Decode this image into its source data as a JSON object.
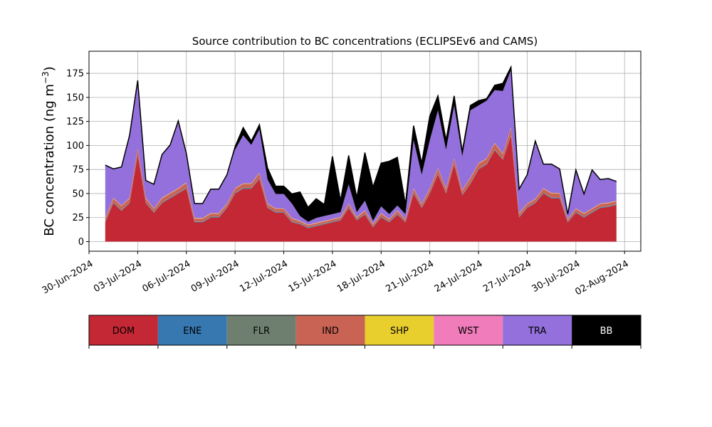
{
  "chart_data": {
    "type": "area",
    "title": "Source contribution to BC concentrations (ECLIPSEv6 and CAMS)",
    "ylabel": "BC concentration (ng m",
    "ylabel_sup": "−3",
    "ylabel_close": ")",
    "ylim": [
      -10,
      198
    ],
    "xlim": [
      "2024-06-30",
      "2024-08-03"
    ],
    "grid": true,
    "y_ticks": [
      0,
      25,
      50,
      75,
      100,
      125,
      150,
      175
    ],
    "x_ticks": [
      "2024-06-30",
      "2024-07-03",
      "2024-07-06",
      "2024-07-09",
      "2024-07-12",
      "2024-07-15",
      "2024-07-18",
      "2024-07-21",
      "2024-07-24",
      "2024-07-27",
      "2024-07-30",
      "2024-08-02"
    ],
    "x_tick_labels": [
      "30-Jun-2024",
      "03-Jul-2024",
      "06-Jul-2024",
      "09-Jul-2024",
      "12-Jul-2024",
      "15-Jul-2024",
      "18-Jul-2024",
      "21-Jul-2024",
      "24-Jul-2024",
      "27-Jul-2024",
      "30-Jul-2024",
      "02-Aug-2024"
    ],
    "x": [
      "2024-07-01",
      "2024-07-01 12:00",
      "2024-07-02",
      "2024-07-02 12:00",
      "2024-07-03",
      "2024-07-03 12:00",
      "2024-07-04",
      "2024-07-04 12:00",
      "2024-07-05",
      "2024-07-05 12:00",
      "2024-07-06",
      "2024-07-06 12:00",
      "2024-07-07",
      "2024-07-07 12:00",
      "2024-07-08",
      "2024-07-08 12:00",
      "2024-07-09",
      "2024-07-09 12:00",
      "2024-07-10",
      "2024-07-10 12:00",
      "2024-07-11",
      "2024-07-11 12:00",
      "2024-07-12",
      "2024-07-12 12:00",
      "2024-07-13",
      "2024-07-13 12:00",
      "2024-07-14",
      "2024-07-14 12:00",
      "2024-07-15",
      "2024-07-15 12:00",
      "2024-07-16",
      "2024-07-16 12:00",
      "2024-07-17",
      "2024-07-17 12:00",
      "2024-07-18",
      "2024-07-18 12:00",
      "2024-07-19",
      "2024-07-19 12:00",
      "2024-07-20",
      "2024-07-20 12:00",
      "2024-07-21",
      "2024-07-21 12:00",
      "2024-07-22",
      "2024-07-22 12:00",
      "2024-07-23",
      "2024-07-23 12:00",
      "2024-07-24",
      "2024-07-24 12:00",
      "2024-07-25",
      "2024-07-25 12:00",
      "2024-07-26",
      "2024-07-26 12:00",
      "2024-07-27",
      "2024-07-27 12:00",
      "2024-07-28",
      "2024-07-28 12:00",
      "2024-07-29",
      "2024-07-29 12:00",
      "2024-07-30",
      "2024-07-30 12:00",
      "2024-07-31",
      "2024-07-31 12:00",
      "2024-08-01",
      "2024-08-01 12:00"
    ],
    "series": [
      {
        "name": "DOM",
        "color": "#c42834",
        "values": [
          20,
          40,
          32,
          40,
          90,
          40,
          30,
          40,
          45,
          50,
          55,
          20,
          20,
          25,
          25,
          35,
          50,
          55,
          55,
          65,
          35,
          30,
          30,
          20,
          18,
          14,
          16,
          18,
          20,
          22,
          35,
          22,
          28,
          15,
          25,
          20,
          28,
          20,
          50,
          35,
          50,
          70,
          50,
          80,
          48,
          60,
          75,
          80,
          95,
          85,
          110,
          25,
          35,
          40,
          50,
          45,
          45,
          20,
          30,
          25,
          30,
          35,
          36,
          38
        ]
      },
      {
        "name": "ENE",
        "color": "#3778b0",
        "values": [
          0.5,
          0.5,
          0.5,
          0.5,
          0.5,
          0.5,
          0.5,
          0.5,
          0.5,
          0.5,
          0.5,
          0.5,
          0.5,
          0.5,
          0.5,
          0.5,
          0.5,
          0.5,
          0.5,
          0.5,
          0.5,
          0.5,
          0.5,
          0.5,
          0.5,
          0.5,
          0.5,
          0.5,
          0.5,
          0.5,
          0.5,
          0.5,
          0.5,
          0.5,
          0.5,
          0.5,
          0.5,
          0.5,
          0.5,
          0.5,
          0.5,
          0.5,
          0.5,
          0.5,
          0.5,
          0.5,
          0.5,
          0.5,
          0.5,
          0.5,
          0.5,
          0.5,
          0.5,
          0.5,
          0.5,
          0.5,
          0.5,
          0.5,
          0.5,
          0.5,
          0.5,
          0.5,
          0.5,
          0.5
        ]
      },
      {
        "name": "FLR",
        "color": "#6e7f70",
        "values": [
          0.5,
          0.5,
          0.5,
          0.5,
          0.5,
          0.5,
          0.5,
          0.5,
          0.5,
          0.5,
          0.5,
          0.5,
          0.5,
          0.5,
          0.5,
          0.5,
          0.5,
          0.5,
          0.5,
          0.5,
          0.5,
          0.5,
          0.5,
          0.5,
          0.5,
          0.5,
          0.5,
          0.5,
          0.5,
          0.5,
          0.5,
          0.5,
          0.5,
          0.5,
          0.5,
          0.5,
          0.5,
          0.5,
          0.5,
          0.5,
          0.5,
          0.5,
          0.5,
          0.5,
          0.5,
          0.5,
          0.5,
          0.5,
          0.5,
          0.5,
          0.5,
          0.5,
          0.5,
          0.5,
          0.5,
          0.5,
          0.5,
          0.5,
          0.5,
          0.5,
          0.5,
          0.5,
          0.5,
          0.5
        ]
      },
      {
        "name": "IND",
        "color": "#c96455",
        "values": [
          3,
          4,
          4,
          4,
          6,
          4,
          3,
          4,
          4,
          4,
          5,
          3,
          3,
          3,
          3,
          3,
          4,
          4,
          4,
          5,
          3,
          3,
          3,
          3,
          2,
          2,
          2,
          2,
          2,
          2,
          3,
          2,
          3,
          2,
          3,
          2,
          3,
          2,
          4,
          3,
          4,
          5,
          4,
          5,
          4,
          5,
          5,
          5,
          6,
          5,
          7,
          3,
          3,
          3,
          4,
          4,
          4,
          2,
          3,
          3,
          3,
          3,
          3,
          3
        ]
      },
      {
        "name": "SHP",
        "color": "#e8cf2e",
        "values": [
          0.3,
          0.3,
          0.3,
          0.3,
          0.3,
          0.3,
          0.3,
          0.3,
          0.3,
          0.3,
          0.3,
          0.3,
          0.3,
          0.3,
          0.3,
          0.3,
          0.3,
          0.3,
          0.3,
          0.3,
          0.3,
          0.3,
          0.3,
          0.3,
          0.3,
          0.3,
          0.3,
          0.3,
          0.3,
          0.3,
          0.3,
          0.3,
          0.3,
          0.3,
          0.3,
          0.3,
          0.3,
          0.3,
          0.3,
          0.3,
          0.3,
          0.3,
          0.3,
          0.3,
          0.3,
          0.3,
          0.3,
          0.3,
          0.3,
          0.3,
          0.3,
          0.3,
          0.3,
          0.3,
          0.3,
          0.3,
          0.3,
          0.3,
          0.3,
          0.3,
          0.3,
          0.3,
          0.3,
          0.3
        ]
      },
      {
        "name": "WST",
        "color": "#f07cbb",
        "values": [
          0.3,
          0.3,
          0.3,
          0.3,
          0.3,
          0.3,
          0.3,
          0.3,
          0.3,
          0.3,
          0.3,
          0.3,
          0.3,
          0.3,
          0.3,
          0.3,
          0.3,
          0.3,
          0.3,
          0.3,
          0.3,
          0.3,
          0.3,
          0.3,
          0.3,
          0.3,
          0.3,
          0.3,
          0.3,
          0.3,
          0.3,
          0.3,
          0.3,
          0.3,
          0.3,
          0.3,
          0.3,
          0.3,
          0.3,
          0.3,
          0.3,
          0.3,
          0.3,
          0.3,
          0.3,
          0.3,
          0.3,
          0.3,
          0.3,
          0.3,
          0.3,
          0.3,
          0.3,
          0.3,
          0.3,
          0.3,
          0.3,
          0.3,
          0.3,
          0.3,
          0.3,
          0.3,
          0.3,
          0.3
        ]
      },
      {
        "name": "TRA",
        "color": "#9370db",
        "values": [
          55,
          30,
          40,
          65,
          70,
          18,
          25,
          45,
          50,
          70,
          30,
          15,
          15,
          25,
          25,
          30,
          40,
          50,
          40,
          45,
          25,
          15,
          15,
          15,
          5,
          3,
          5,
          5,
          5,
          5,
          20,
          5,
          10,
          3,
          7,
          5,
          5,
          5,
          50,
          30,
          50,
          60,
          40,
          55,
          35,
          70,
          60,
          60,
          55,
          65,
          60,
          25,
          30,
          60,
          25,
          30,
          25,
          5,
          40,
          20,
          40,
          25,
          25,
          20
        ]
      },
      {
        "name": "BB",
        "color": "#000000",
        "values": [
          0,
          0,
          0,
          0,
          0,
          0,
          0,
          0,
          0,
          0,
          0,
          0,
          0,
          0,
          0,
          0,
          3,
          8,
          4,
          5,
          12,
          8,
          8,
          10,
          25,
          15,
          20,
          12,
          60,
          12,
          30,
          15,
          50,
          35,
          45,
          55,
          50,
          10,
          15,
          12,
          25,
          15,
          10,
          10,
          5,
          5,
          5,
          2,
          5,
          8,
          3,
          0,
          0,
          0,
          0,
          0,
          0,
          0,
          0,
          0,
          0,
          0,
          0,
          0
        ]
      }
    ],
    "legend_placement": "below"
  }
}
